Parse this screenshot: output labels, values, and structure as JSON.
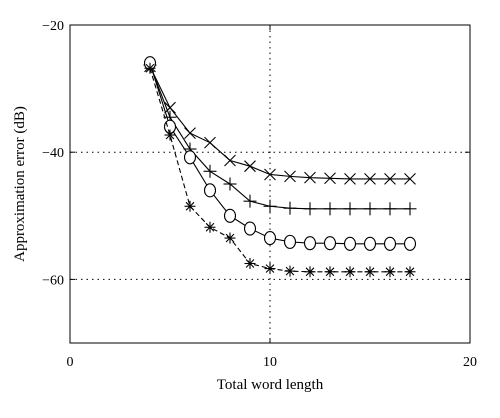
{
  "chart_data": {
    "type": "line",
    "title": "",
    "xlabel": "Total word length",
    "ylabel": "Approximation error (dB)",
    "xlim": [
      0,
      20
    ],
    "ylim": [
      -70,
      -20
    ],
    "xticks": [
      0,
      10,
      20
    ],
    "yticks": [
      -20,
      -40,
      -60
    ],
    "xtick_labels": [
      "0",
      "10",
      "20"
    ],
    "ytick_labels": [
      "−20",
      "−40",
      "−60"
    ],
    "grid": "dotted, major ticks only",
    "legend": "none",
    "series": [
      {
        "marker": "x",
        "line_style": "solid",
        "color": "#000000",
        "x": [
          4,
          5,
          6,
          7,
          8,
          9,
          10,
          11,
          12,
          13,
          14,
          15,
          16,
          17
        ],
        "y": [
          -26.5,
          -33.0,
          -37.0,
          -38.5,
          -41.3,
          -42.2,
          -43.5,
          -43.8,
          -44.0,
          -44.1,
          -44.2,
          -44.2,
          -44.2,
          -44.2
        ]
      },
      {
        "marker": "+",
        "line_style": "solid",
        "color": "#000000",
        "x": [
          4,
          5,
          6,
          7,
          8,
          9,
          10,
          11,
          12,
          13,
          14,
          15,
          16,
          17
        ],
        "y": [
          -26.3,
          -34.5,
          -39.5,
          -43.0,
          -45.0,
          -47.7,
          -48.5,
          -48.8,
          -48.9,
          -48.9,
          -48.9,
          -48.9,
          -48.9,
          -48.9
        ]
      },
      {
        "marker": "o",
        "line_style": "solid",
        "color": "#000000",
        "x": [
          4,
          5,
          6,
          7,
          8,
          9,
          10,
          11,
          12,
          13,
          14,
          15,
          16,
          17
        ],
        "y": [
          -26.0,
          -36.0,
          -40.8,
          -46.0,
          -50.0,
          -52.0,
          -53.5,
          -54.1,
          -54.3,
          -54.3,
          -54.4,
          -54.4,
          -54.4,
          -54.4
        ]
      },
      {
        "marker": "*",
        "line_style": "dashed",
        "color": "#000000",
        "x": [
          4,
          5,
          6,
          7,
          8,
          9,
          10,
          11,
          12,
          13,
          14,
          15,
          16,
          17
        ],
        "y": [
          -26.8,
          -37.3,
          -48.5,
          -51.8,
          -53.5,
          -57.5,
          -58.3,
          -58.7,
          -58.8,
          -58.8,
          -58.8,
          -58.8,
          -58.8,
          -58.8
        ]
      }
    ]
  }
}
